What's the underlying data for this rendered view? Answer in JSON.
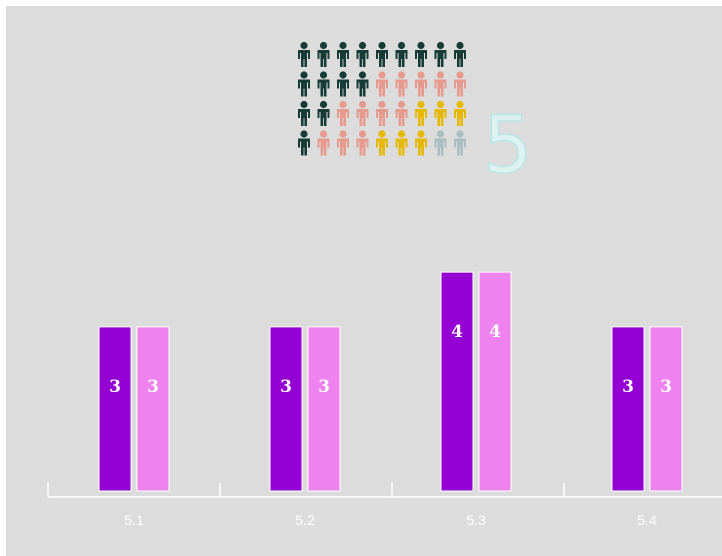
{
  "pictogram": {
    "value_label": "5",
    "rows": [
      [
        "#173c38",
        "#173c38",
        "#173c38",
        "#173c38",
        "#173c38",
        "#173c38",
        "#173c38",
        "#173c38",
        "#173c38"
      ],
      [
        "#173c38",
        "#173c38",
        "#173c38",
        "#173c38",
        "#e69a8e",
        "#e69a8e",
        "#e69a8e",
        "#e69a8e",
        "#e69a8e"
      ],
      [
        "#173c38",
        "#173c38",
        "#e69a8e",
        "#e69a8e",
        "#e69a8e",
        "#e69a8e",
        "#e6b800",
        "#e6b800",
        "#e6b800"
      ],
      [
        "#173c38",
        "#e69a8e",
        "#e69a8e",
        "#e69a8e",
        "#e6b800",
        "#e6b800",
        "#e6b800",
        "#a9bec0",
        "#a9bec0"
      ]
    ]
  },
  "colors": {
    "series_1": "#9400d3",
    "series_2": "#ee82ee",
    "axis": "#ffffff",
    "background": "#dcdcdc"
  },
  "chart_data": {
    "type": "bar",
    "categories": [
      "5.1",
      "5.2",
      "5.3",
      "5.4"
    ],
    "series": [
      {
        "values": [
          3,
          3,
          4,
          3
        ]
      },
      {
        "values": [
          3,
          3,
          4,
          3
        ]
      }
    ],
    "data_labels": true,
    "title": "",
    "xlabel": "",
    "ylabel": "",
    "ylim": [
      0,
      7
    ],
    "grid": false,
    "legend": "none"
  }
}
